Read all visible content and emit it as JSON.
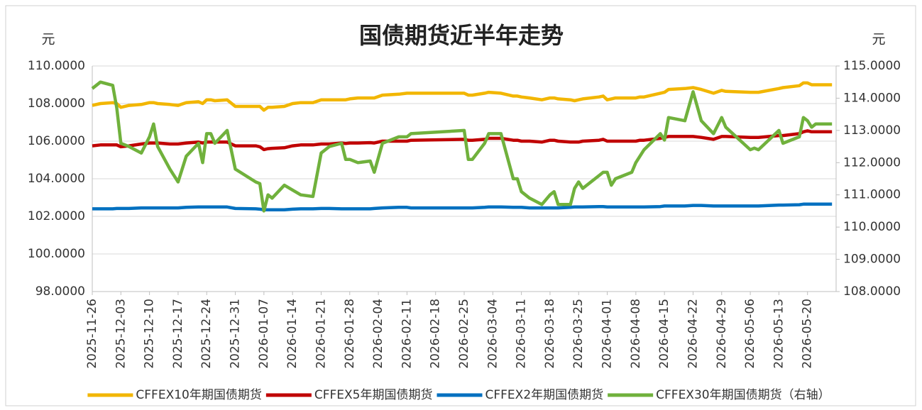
{
  "chart_data": {
    "type": "line",
    "title": "国债期货近半年走势",
    "y_unit": "元",
    "y2_unit": "元",
    "x": [
      "2025-11-26",
      "2025-11-28",
      "2025-12-01",
      "2025-12-02",
      "2025-12-03",
      "2025-12-05",
      "2025-12-08",
      "2025-12-10",
      "2025-12-11",
      "2025-12-12",
      "2025-12-15",
      "2025-12-17",
      "2025-12-19",
      "2025-12-22",
      "2025-12-23",
      "2025-12-24",
      "2025-12-25",
      "2025-12-26",
      "2025-12-29",
      "2025-12-31",
      "2026-01-05",
      "2026-01-06",
      "2026-01-07",
      "2026-01-08",
      "2026-01-09",
      "2026-01-12",
      "2026-01-14",
      "2026-01-16",
      "2026-01-19",
      "2026-01-21",
      "2026-01-23",
      "2026-01-26",
      "2026-01-27",
      "2026-01-28",
      "2026-01-30",
      "2026-02-02",
      "2026-02-03",
      "2026-02-05",
      "2026-02-09",
      "2026-02-11",
      "2026-02-12",
      "2026-02-25",
      "2026-02-26",
      "2026-02-27",
      "2026-03-02",
      "2026-03-03",
      "2026-03-06",
      "2026-03-09",
      "2026-03-10",
      "2026-03-11",
      "2026-03-13",
      "2026-03-16",
      "2026-03-18",
      "2026-03-19",
      "2026-03-20",
      "2026-03-23",
      "2026-03-24",
      "2026-03-25",
      "2026-03-26",
      "2026-03-30",
      "2026-03-31",
      "2026-04-01",
      "2026-04-02",
      "2026-04-03",
      "2026-04-07",
      "2026-04-08",
      "2026-04-09",
      "2026-04-10",
      "2026-04-14",
      "2026-04-15",
      "2026-04-16",
      "2026-04-20",
      "2026-04-22",
      "2026-04-24",
      "2026-04-27",
      "2026-04-29",
      "2026-04-30",
      "2026-05-06",
      "2026-05-07",
      "2026-05-08",
      "2026-05-13",
      "2026-05-14",
      "2026-05-18",
      "2026-05-19",
      "2026-05-20",
      "2026-05-21",
      "2026-05-22",
      "2026-05-26"
    ],
    "series": [
      {
        "name": "CFFEX10年期国债期货",
        "color": "#f2b600",
        "values": [
          107.9,
          108.0,
          108.05,
          108.0,
          107.8,
          107.9,
          107.95,
          108.05,
          108.05,
          108.0,
          107.95,
          107.9,
          108.05,
          108.1,
          108.0,
          108.2,
          108.2,
          108.15,
          108.2,
          107.85,
          107.85,
          107.85,
          107.65,
          107.8,
          107.8,
          107.85,
          108.0,
          108.05,
          108.05,
          108.2,
          108.2,
          108.2,
          108.2,
          108.25,
          108.3,
          108.3,
          108.3,
          108.45,
          108.5,
          108.55,
          108.55,
          108.55,
          108.45,
          108.45,
          108.55,
          108.6,
          108.55,
          108.4,
          108.4,
          108.35,
          108.3,
          108.2,
          108.3,
          108.3,
          108.25,
          108.2,
          108.15,
          108.2,
          108.25,
          108.35,
          108.4,
          108.2,
          108.25,
          108.3,
          108.3,
          108.3,
          108.35,
          108.35,
          108.55,
          108.6,
          108.75,
          108.8,
          108.85,
          108.75,
          108.55,
          108.7,
          108.65,
          108.6,
          108.6,
          108.6,
          108.8,
          108.85,
          108.95,
          109.1,
          109.1,
          109.0,
          109.0,
          109.0
        ]
      },
      {
        "name": "CFFEX5年期国债期货",
        "color": "#c00000",
        "values": [
          105.75,
          105.8,
          105.8,
          105.8,
          105.7,
          105.75,
          105.85,
          105.9,
          105.9,
          105.9,
          105.85,
          105.85,
          105.9,
          105.95,
          105.9,
          105.95,
          105.95,
          105.95,
          105.95,
          105.75,
          105.75,
          105.7,
          105.55,
          105.6,
          105.62,
          105.65,
          105.75,
          105.8,
          105.8,
          105.85,
          105.85,
          105.9,
          105.88,
          105.9,
          105.9,
          105.92,
          105.9,
          106.0,
          106.0,
          106.0,
          106.05,
          106.1,
          106.05,
          106.05,
          106.1,
          106.15,
          106.15,
          106.05,
          106.05,
          106.0,
          106.0,
          105.95,
          106.05,
          106.05,
          106.0,
          105.95,
          105.95,
          105.95,
          106.0,
          106.05,
          106.1,
          106.0,
          106.0,
          106.0,
          106.0,
          106.0,
          106.05,
          106.05,
          106.15,
          106.2,
          106.25,
          106.25,
          106.25,
          106.2,
          106.1,
          106.25,
          106.25,
          106.2,
          106.2,
          106.2,
          106.3,
          106.3,
          106.4,
          106.5,
          106.55,
          106.5,
          106.5,
          106.5
        ]
      },
      {
        "name": "CFFEX2年期国债期货",
        "color": "#0070c0",
        "values": [
          102.4,
          102.4,
          102.4,
          102.42,
          102.42,
          102.42,
          102.45,
          102.45,
          102.45,
          102.45,
          102.45,
          102.45,
          102.48,
          102.5,
          102.5,
          102.5,
          102.5,
          102.5,
          102.5,
          102.42,
          102.4,
          102.38,
          102.35,
          102.35,
          102.35,
          102.35,
          102.38,
          102.4,
          102.4,
          102.42,
          102.42,
          102.4,
          102.4,
          102.4,
          102.4,
          102.4,
          102.42,
          102.45,
          102.48,
          102.48,
          102.45,
          102.45,
          102.45,
          102.45,
          102.48,
          102.5,
          102.5,
          102.48,
          102.48,
          102.48,
          102.45,
          102.45,
          102.45,
          102.45,
          102.45,
          102.48,
          102.5,
          102.5,
          102.5,
          102.52,
          102.52,
          102.5,
          102.5,
          102.5,
          102.5,
          102.5,
          102.5,
          102.5,
          102.52,
          102.55,
          102.55,
          102.55,
          102.58,
          102.58,
          102.55,
          102.55,
          102.55,
          102.55,
          102.55,
          102.55,
          102.6,
          102.6,
          102.62,
          102.65,
          102.65,
          102.65,
          102.65,
          102.65
        ]
      },
      {
        "name": "CFFEX30年期国债期货（右轴）",
        "color": "#70b13c",
        "axis": "y2",
        "values": [
          114.3,
          114.5,
          114.4,
          113.7,
          112.6,
          112.5,
          112.3,
          112.8,
          113.2,
          112.5,
          111.8,
          111.4,
          112.2,
          112.6,
          112.0,
          112.9,
          112.9,
          112.6,
          113.0,
          111.8,
          111.4,
          111.35,
          110.5,
          111.0,
          110.9,
          111.3,
          111.15,
          111.0,
          110.95,
          112.3,
          112.5,
          112.6,
          112.1,
          112.1,
          112.0,
          112.05,
          111.7,
          112.6,
          112.8,
          112.8,
          112.9,
          113.0,
          112.1,
          112.1,
          112.6,
          112.9,
          112.9,
          111.5,
          111.5,
          111.1,
          110.9,
          110.7,
          111.0,
          111.1,
          110.7,
          110.7,
          111.2,
          111.4,
          111.2,
          111.6,
          111.7,
          111.7,
          111.3,
          111.5,
          111.7,
          112.0,
          112.2,
          112.4,
          112.9,
          112.7,
          113.4,
          113.3,
          114.2,
          113.3,
          112.9,
          113.4,
          113.1,
          112.4,
          112.45,
          112.4,
          113.0,
          112.6,
          112.8,
          113.4,
          113.3,
          113.1,
          113.2,
          113.2
        ]
      }
    ],
    "xlim": [
      "2025-11-26",
      "2026-05-27"
    ],
    "xticks": [
      "2025-11-26",
      "2025-12-03",
      "2025-12-10",
      "2025-12-17",
      "2025-12-24",
      "2025-12-31",
      "2026-01-07",
      "2026-01-14",
      "2026-01-21",
      "2026-01-28",
      "2026-02-04",
      "2026-02-11",
      "2026-02-18",
      "2026-02-25",
      "2026-03-04",
      "2026-03-11",
      "2026-03-18",
      "2026-03-25",
      "2026-04-01",
      "2026-04-08",
      "2026-04-15",
      "2026-04-22",
      "2026-04-29",
      "2026-05-06",
      "2026-05-13",
      "2026-05-20"
    ],
    "ylim": [
      98,
      110
    ],
    "yticks": [
      {
        "value": 98,
        "label": "98.0000"
      },
      {
        "value": 100,
        "label": "100.0000"
      },
      {
        "value": 102,
        "label": "102.0000"
      },
      {
        "value": 104,
        "label": "104.0000"
      },
      {
        "value": 106,
        "label": "106.0000"
      },
      {
        "value": 108,
        "label": "108.0000"
      },
      {
        "value": 110,
        "label": "110.0000"
      }
    ],
    "y2lim": [
      108,
      115
    ],
    "y2ticks": [
      {
        "value": 108,
        "label": "108.0000"
      },
      {
        "value": 109,
        "label": "109.0000"
      },
      {
        "value": 110,
        "label": "110.0000"
      },
      {
        "value": 111,
        "label": "111.0000"
      },
      {
        "value": 112,
        "label": "112.0000"
      },
      {
        "value": 113,
        "label": "113.0000"
      },
      {
        "value": 114,
        "label": "114.0000"
      },
      {
        "value": 115,
        "label": "115.0000"
      }
    ],
    "grid": true,
    "legend": "bottom"
  }
}
